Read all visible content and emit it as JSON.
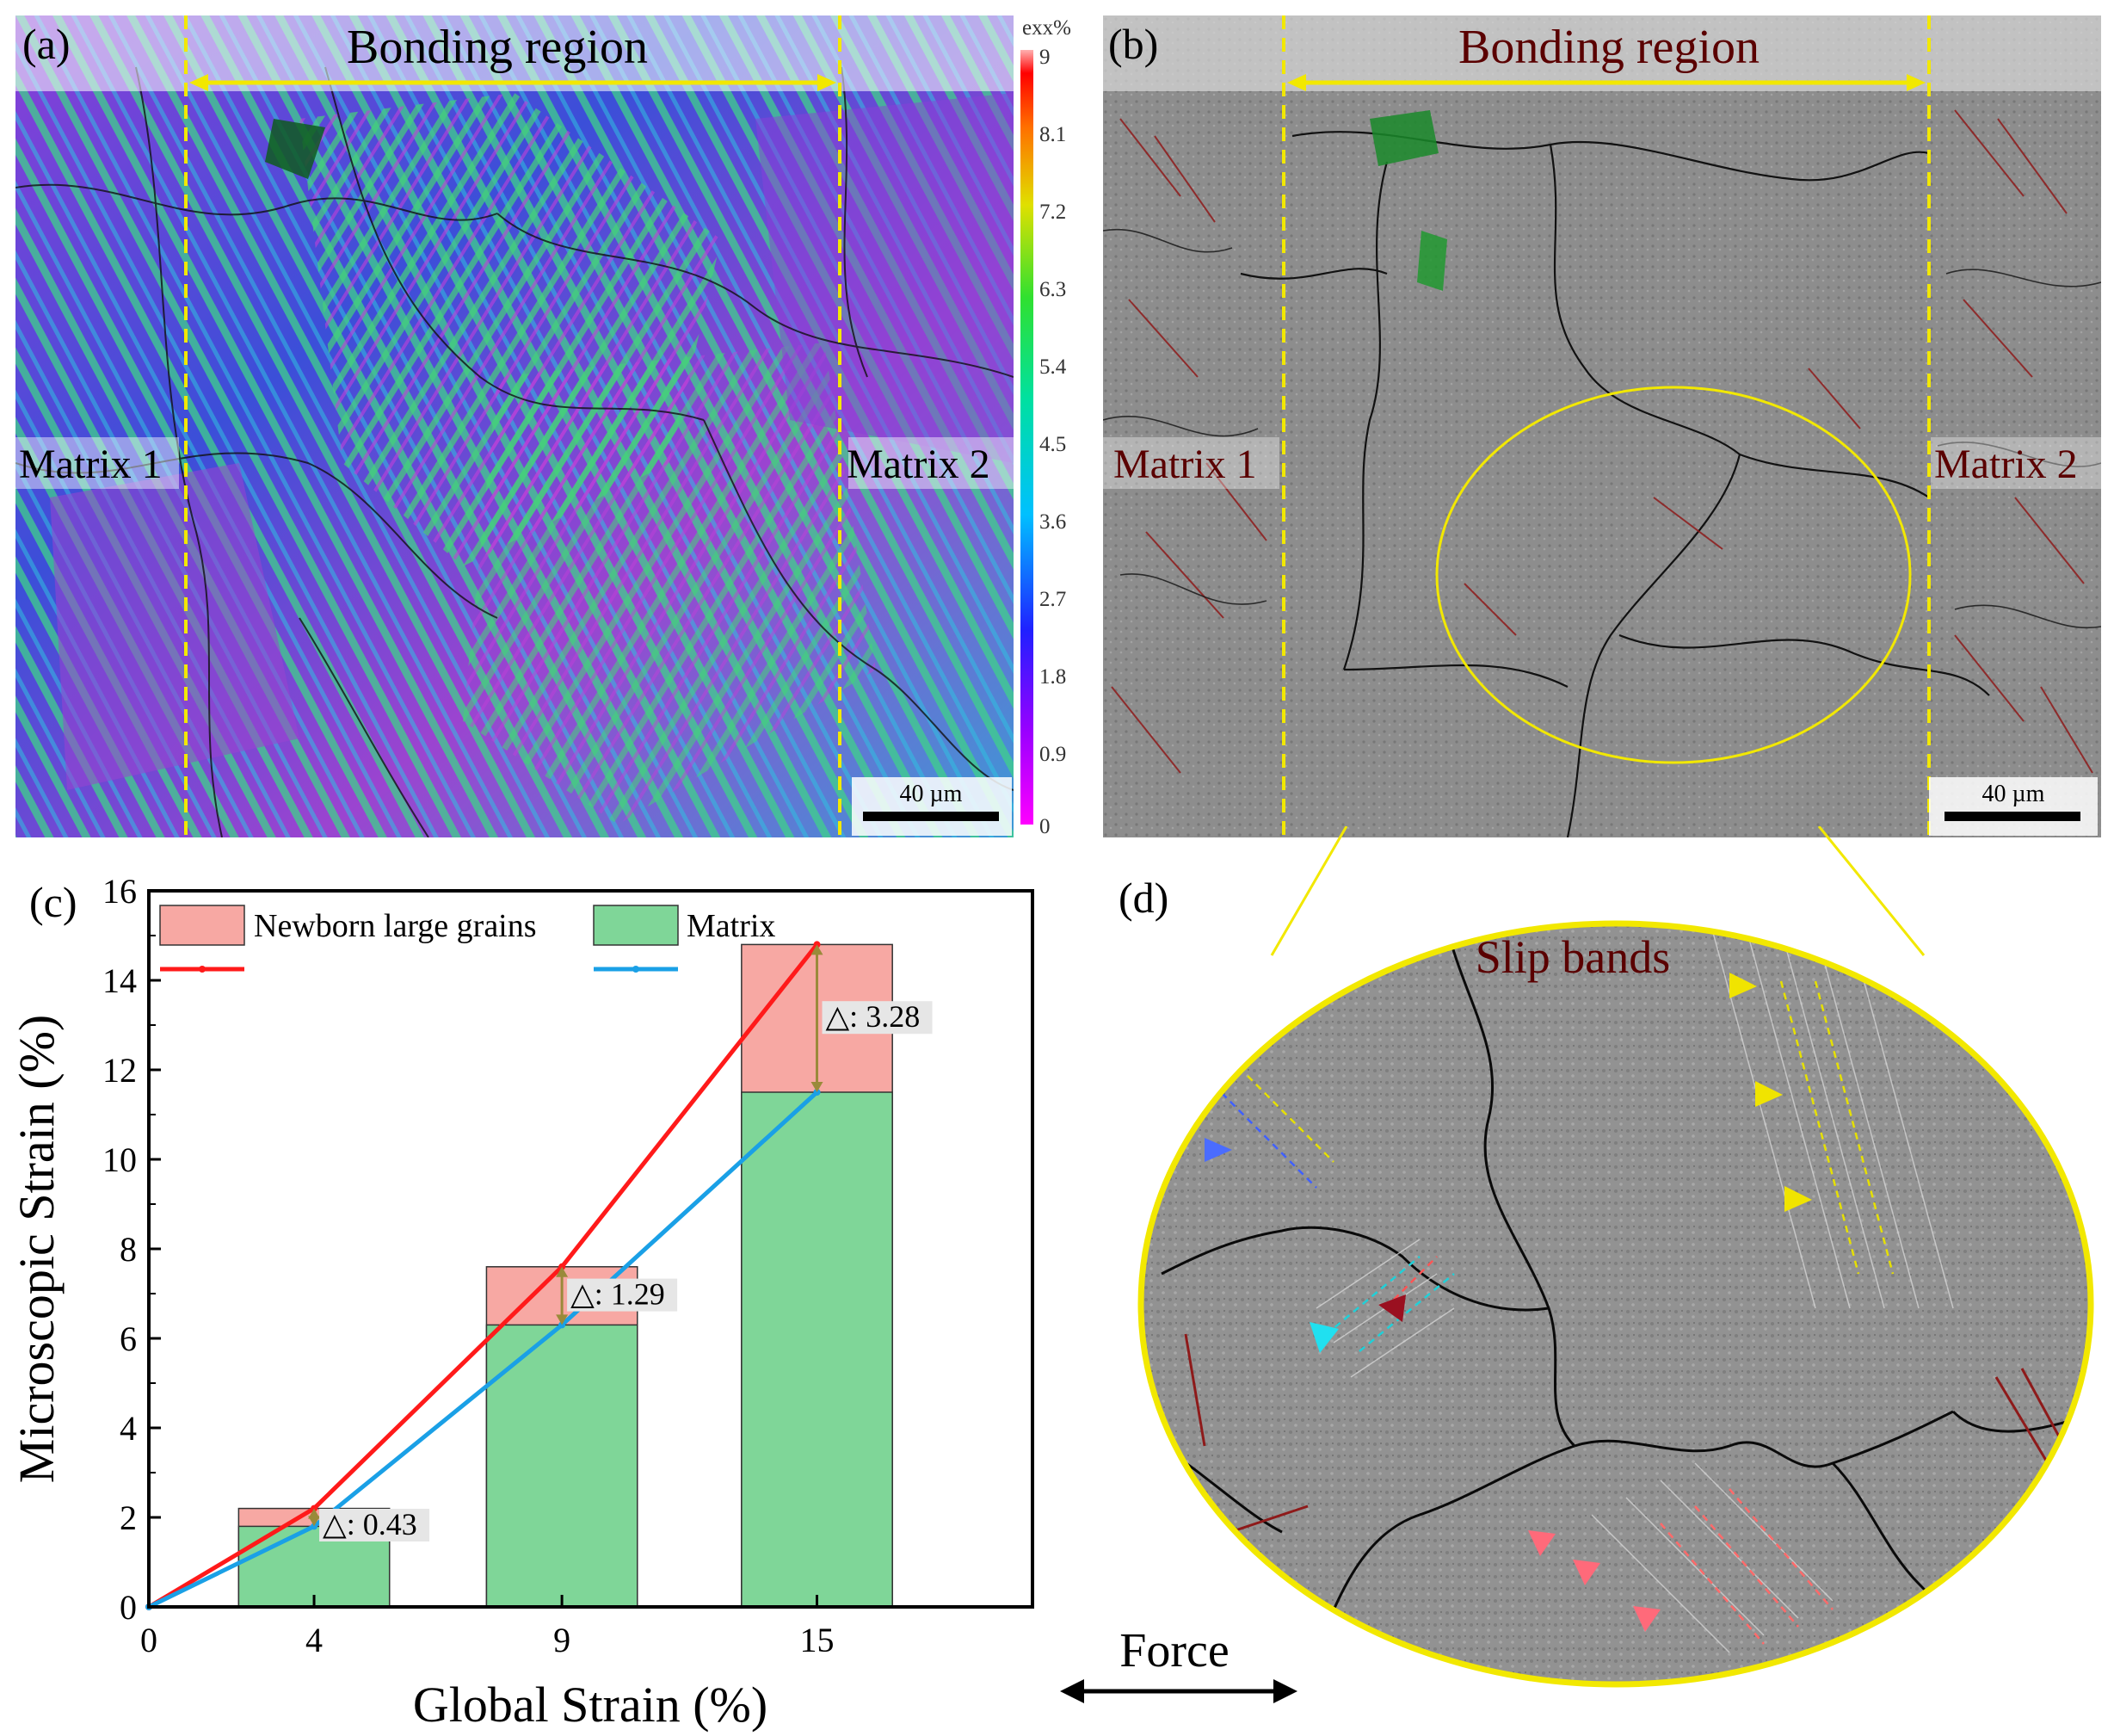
{
  "panel_a": {
    "label": "(a)",
    "title": "Bonding region",
    "left_label": "Matrix 1",
    "right_label": "Matrix 2",
    "scale_bar": "40 µm",
    "colorbar": {
      "title": "exx%",
      "ticks": [
        "9",
        "8.1",
        "7.2",
        "6.3",
        "5.4",
        "4.5",
        "3.6",
        "2.7",
        "1.8",
        "0.9",
        "0"
      ]
    }
  },
  "panel_b": {
    "label": "(b)",
    "title": "Bonding region",
    "left_label": "Matrix 1",
    "right_label": "Matrix 2",
    "scale_bar": "40 µm"
  },
  "panel_c": {
    "label": "(c)"
  },
  "panel_d": {
    "label": "(d)",
    "annotation": "Slip bands",
    "force_label": "Force"
  },
  "colors": {
    "bonding_arrow": "#f2e800",
    "newborn_bar": "#f7a8a3",
    "matrix_bar": "#7fd698",
    "newborn_line": "#ff1a1a",
    "matrix_line": "#1aa0e6",
    "delta_arrow": "#9a8a3a"
  },
  "chart_data": {
    "type": "bar",
    "categories": [
      "4",
      "9",
      "15"
    ],
    "x": [
      4,
      9,
      15
    ],
    "series": [
      {
        "name": "Newborn large grains",
        "values": [
          2.2,
          7.6,
          14.8
        ]
      },
      {
        "name": "Matrix",
        "values": [
          1.8,
          6.3,
          11.5
        ]
      }
    ],
    "lines": [
      {
        "name": "Newborn large grains",
        "x": [
          0,
          4,
          9,
          15
        ],
        "y": [
          0,
          2.2,
          7.6,
          14.8
        ]
      },
      {
        "name": "Matrix",
        "x": [
          0,
          4,
          9,
          15
        ],
        "y": [
          0,
          1.8,
          6.3,
          11.5
        ]
      }
    ],
    "differences": [
      "△: 0.43",
      "△: 1.29",
      "△: 3.28"
    ],
    "xlabel": "Global Strain (%)",
    "ylabel": "Microscopic Strain (%)",
    "ylim": [
      0,
      16
    ],
    "yticks": [
      "0",
      "2",
      "4",
      "6",
      "8",
      "10",
      "12",
      "14",
      "16"
    ],
    "xticks": [
      "0",
      "4",
      "9",
      "15"
    ]
  }
}
